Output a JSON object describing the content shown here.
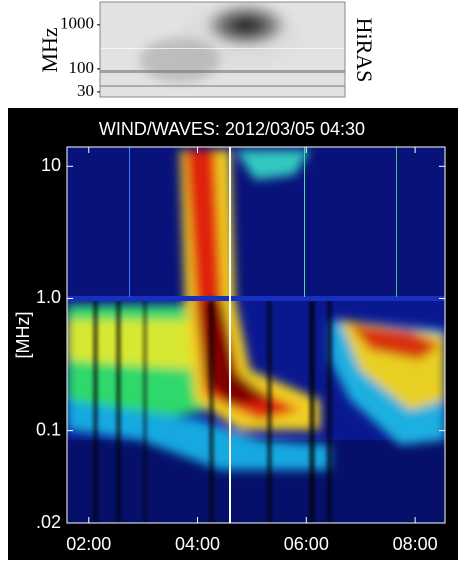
{
  "chart_data": [
    {
      "type": "spectrogram",
      "ylabel": "MHz",
      "right_label": "HiRAS",
      "log_y": true,
      "ylim": [
        23,
        3300
      ],
      "yticks": [
        30,
        100,
        1000
      ]
    },
    {
      "type": "spectrogram",
      "title": "WIND/WAVES: 2012/03/05 04:30",
      "ylabel": "[MHz]",
      "log_y": true,
      "ylim": [
        0.02,
        14
      ],
      "yticks": [
        {
          "value": 0.02,
          "label": ".02"
        },
        0.1,
        {
          "value": 1,
          "label": "1.0"
        },
        10
      ],
      "xlim": [
        1.6,
        8.55
      ],
      "xticks": [
        {
          "value": 2,
          "label": "02:00"
        },
        {
          "value": 4,
          "label": "04:00"
        },
        {
          "value": 6,
          "label": "06:00"
        },
        {
          "value": 8,
          "label": "08:00"
        }
      ]
    }
  ]
}
